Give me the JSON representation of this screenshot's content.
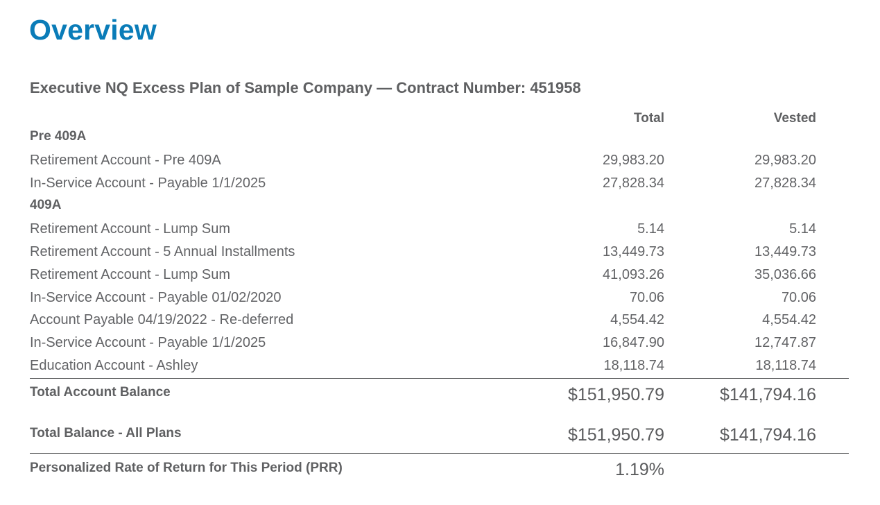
{
  "page_title": "Overview",
  "plan_title": "Executive NQ Excess Plan of Sample Company — Contract Number: 451958",
  "columns": {
    "total": "Total",
    "vested": "Vested"
  },
  "sections": [
    {
      "heading": "Pre 409A",
      "rows": [
        {
          "label": "Retirement Account - Pre 409A",
          "total": "29,983.20",
          "vested": "29,983.20"
        },
        {
          "label": "In-Service Account - Payable 1/1/2025",
          "total": "27,828.34",
          "vested": "27,828.34"
        }
      ]
    },
    {
      "heading": "409A",
      "rows": [
        {
          "label": "Retirement Account  -  Lump Sum",
          "total": "5.14",
          "vested": "5.14"
        },
        {
          "label": "Retirement Account - 5 Annual Installments",
          "total": "13,449.73",
          "vested": "13,449.73"
        },
        {
          "label": "Retirement Account - Lump Sum",
          "total": "41,093.26",
          "vested": "35,036.66"
        },
        {
          "label": "In-Service Account - Payable 01/02/2020",
          "total": "70.06",
          "vested": "70.06"
        },
        {
          "label": "Account Payable 04/19/2022 - Re-deferred",
          "total": "4,554.42",
          "vested": "4,554.42"
        },
        {
          "label": "In-Service Account - Payable 1/1/2025",
          "total": "16,847.90",
          "vested": "12,747.87"
        },
        {
          "label": "Education Account - Ashley",
          "total": "18,118.74",
          "vested": "18,118.74"
        }
      ]
    }
  ],
  "total_account_balance": {
    "label": "Total Account Balance",
    "total": "$151,950.79",
    "vested": "$141,794.16"
  },
  "total_all_plans": {
    "label": "Total Balance - All Plans",
    "total": "$151,950.79",
    "vested": "$141,794.16"
  },
  "prr": {
    "label": "Personalized Rate of Return for This Period  (PRR)",
    "value": "1.19%"
  },
  "colors": {
    "title": "#0a7cb8",
    "text": "#626366",
    "rule": "#555658"
  }
}
